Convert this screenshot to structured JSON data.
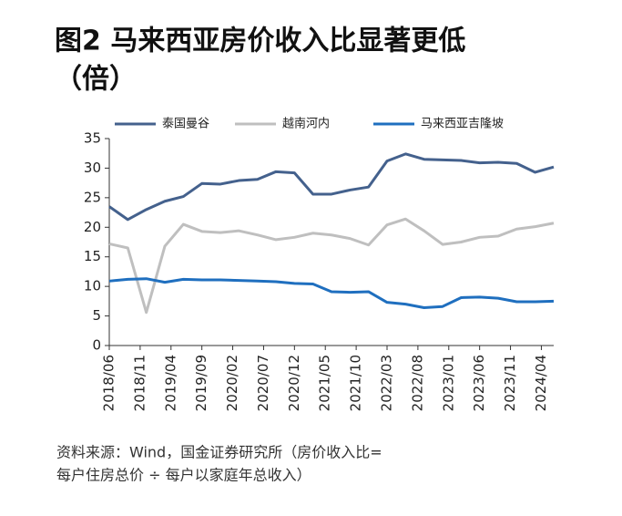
{
  "chart_data": {
    "type": "line",
    "title": "图2  马来西亚房价收入比显著更低",
    "subtitle": "（倍）",
    "source": "资料来源：Wind，国金证券研究所（房价收入比=",
    "source_2": "每户住房总价 ÷ 每户以家庭年总收入）",
    "x": [
      0,
      3,
      6,
      9,
      12,
      15,
      18,
      21,
      24,
      27,
      30,
      33,
      36,
      39,
      42,
      45,
      48,
      51,
      54,
      57,
      60,
      63,
      66,
      69,
      72
    ],
    "xlim": [
      0,
      72
    ],
    "xticks": [
      {
        "value": 0,
        "label": "2018/06"
      },
      {
        "value": 5,
        "label": "2018/11"
      },
      {
        "value": 10,
        "label": "2019/04"
      },
      {
        "value": 15,
        "label": "2019/09"
      },
      {
        "value": 20,
        "label": "2020/02"
      },
      {
        "value": 25,
        "label": "2020/07"
      },
      {
        "value": 30,
        "label": "2020/12"
      },
      {
        "value": 35,
        "label": "2021/05"
      },
      {
        "value": 40,
        "label": "2021/10"
      },
      {
        "value": 45,
        "label": "2022/03"
      },
      {
        "value": 50,
        "label": "2022/08"
      },
      {
        "value": 55,
        "label": "2023/01"
      },
      {
        "value": 60,
        "label": "2023/06"
      },
      {
        "value": 65,
        "label": "2023/11"
      },
      {
        "value": 70,
        "label": "2024/04"
      }
    ],
    "ylim": [
      0,
      35
    ],
    "yticks": [
      0,
      5,
      10,
      15,
      20,
      25,
      30,
      35
    ],
    "series": [
      {
        "name": "泰国曼谷",
        "color": "#44618d",
        "values": [
          23.5,
          21.3,
          23,
          24.4,
          25.2,
          27.4,
          27.3,
          27.9,
          28.1,
          29.4,
          29.2,
          25.6,
          25.6,
          26.3,
          26.8,
          31.2,
          32.4,
          31.5,
          31.4,
          31.3,
          30.9,
          31,
          30.8,
          29.3,
          30.2
        ]
      },
      {
        "name": "越南河内",
        "color": "#bfbfbf",
        "values": [
          17.2,
          16.5,
          5.6,
          16.8,
          20.5,
          19.3,
          19.1,
          19.4,
          18.7,
          17.9,
          18.3,
          19,
          18.7,
          18.1,
          17,
          20.4,
          21.4,
          19.4,
          17.1,
          17.5,
          18.3,
          18.5,
          19.7,
          20.1,
          20.7
        ]
      },
      {
        "name": "马来西亚吉隆坡",
        "color": "#1f6fbf",
        "values": [
          10.9,
          11.2,
          11.3,
          10.7,
          11.2,
          11.1,
          11.1,
          11.0,
          10.9,
          10.8,
          10.5,
          10.4,
          9.1,
          9.0,
          9.1,
          7.3,
          7.0,
          6.4,
          6.6,
          8.1,
          8.2,
          8.0,
          7.4,
          7.4,
          7.5
        ]
      }
    ]
  }
}
